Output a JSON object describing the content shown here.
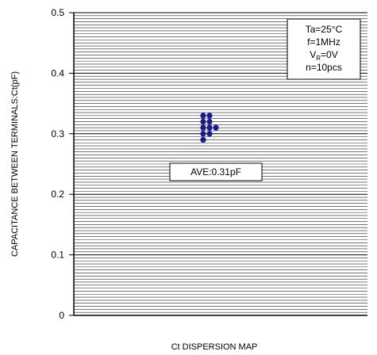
{
  "chart_data": {
    "type": "scatter",
    "ylabel": "CAPACITANCE BETWEEN  TERMINALS:Ct(pF)",
    "xlabel": "Ct DISPERSION MAP",
    "ylim": [
      0,
      0.5
    ],
    "yticks": [
      {
        "value": 0,
        "label": "0"
      },
      {
        "value": 0.1,
        "label": "0.1"
      },
      {
        "value": 0.2,
        "label": "0.2"
      },
      {
        "value": 0.3,
        "label": "0.3"
      },
      {
        "value": 0.4,
        "label": "0.4"
      },
      {
        "value": 0.5,
        "label": "0.5"
      }
    ],
    "minor_step": 0.005,
    "grid": true,
    "series": [
      {
        "color": "#1a1a8c",
        "points": [
          {
            "col": 0,
            "value": 0.33
          },
          {
            "col": 1,
            "value": 0.33
          },
          {
            "col": 0,
            "value": 0.32
          },
          {
            "col": 1,
            "value": 0.32
          },
          {
            "col": 0,
            "value": 0.31
          },
          {
            "col": 1,
            "value": 0.31
          },
          {
            "col": 2,
            "value": 0.31
          },
          {
            "col": 0,
            "value": 0.3
          },
          {
            "col": 1,
            "value": 0.3
          },
          {
            "col": 0,
            "value": 0.29
          }
        ]
      }
    ],
    "annotations": {
      "conditions": {
        "placement": "top-right",
        "lines": [
          {
            "main": "Ta=25°C",
            "sub": ""
          },
          {
            "main": "f=1MHz",
            "sub": ""
          },
          {
            "main": "V",
            "sub": "R",
            "tail": "=0V"
          },
          {
            "main": "n=10pcs",
            "sub": ""
          }
        ]
      },
      "average": {
        "text": "AVE:0.31pF"
      }
    }
  }
}
